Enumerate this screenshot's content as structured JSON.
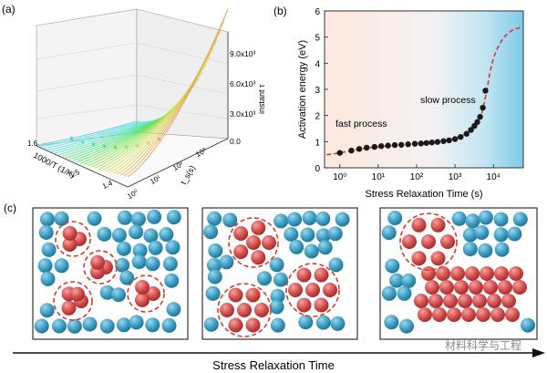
{
  "panel_labels": {
    "a": "(a)",
    "b": "(b)",
    "c": "(c)"
  },
  "panel_a": {
    "z_label": "instant τ",
    "z_ticks": [
      "9.0x10³",
      "6.0x10³",
      "3.0x10³",
      "0.0"
    ],
    "x_label": "1000/T (1/K)",
    "x_ticks": [
      "1.6",
      "1.5",
      "1.4"
    ],
    "y_label": "t_s(s)",
    "y_ticks": [
      "10⁰",
      "10¹",
      "10²",
      "10³"
    ]
  },
  "chart_data": {
    "type": "scatter",
    "title": "",
    "xlabel": "Stress Relaxation Time (s)",
    "ylabel": "Activation energy (eV)",
    "xscale": "log",
    "xlim": [
      0.4,
      60000
    ],
    "ylim": [
      0,
      6
    ],
    "x_ticks": [
      1,
      10,
      100,
      1000,
      10000
    ],
    "x_tick_labels": [
      "10⁰",
      "10¹",
      "10²",
      "10³",
      "10⁴"
    ],
    "y_ticks": [
      0,
      1,
      2,
      3,
      4,
      5,
      6
    ],
    "y_tick_labels": [
      "0",
      "1",
      "2",
      "3",
      "4",
      "5",
      "6"
    ],
    "series": [
      {
        "name": "measured",
        "style": "points",
        "x": [
          1,
          2,
          3.2,
          5,
          8,
          12,
          18,
          27,
          40,
          60,
          90,
          130,
          180,
          250,
          350,
          500,
          700,
          1000,
          1400,
          2000,
          2600,
          3200,
          3800,
          4500,
          5300,
          6200
        ],
        "y": [
          0.57,
          0.66,
          0.72,
          0.77,
          0.8,
          0.83,
          0.85,
          0.87,
          0.88,
          0.9,
          0.92,
          0.93,
          0.95,
          0.97,
          0.99,
          1.02,
          1.05,
          1.1,
          1.18,
          1.3,
          1.45,
          1.6,
          1.75,
          1.95,
          2.3,
          2.95
        ]
      },
      {
        "name": "fit",
        "style": "dashed",
        "x": [
          0.45,
          1,
          3,
          10,
          30,
          100,
          300,
          1000,
          2000,
          3000,
          4000,
          5000,
          6000,
          7000,
          8000,
          10000,
          13000,
          17000,
          22000,
          30000,
          40000,
          55000
        ],
        "y": [
          0.5,
          0.57,
          0.71,
          0.81,
          0.86,
          0.92,
          0.99,
          1.1,
          1.3,
          1.55,
          1.8,
          2.1,
          2.6,
          3.1,
          3.6,
          4.2,
          4.6,
          4.9,
          5.1,
          5.25,
          5.33,
          5.38
        ]
      }
    ],
    "annotations": [
      "fast process",
      "slow process"
    ],
    "colors": {
      "point": "#1a1a1a",
      "fit": "#d93a2b",
      "bg_left": "#fbe7dc",
      "bg_right": "#8dd1ee"
    }
  },
  "panel_c": {
    "colors": {
      "blue": "#3a9bc0",
      "red": "#d04a48"
    },
    "arrow_label": "Stress Relaxation Time"
  },
  "watermark": "材料科学与工程"
}
